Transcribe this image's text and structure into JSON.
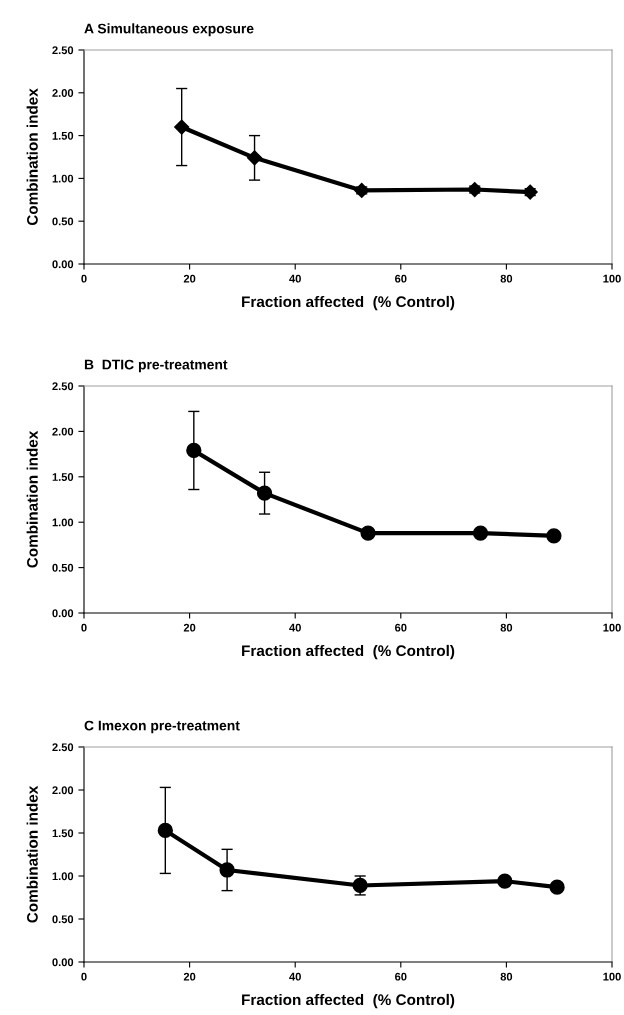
{
  "chart_data": [
    {
      "type": "line",
      "title": "A Simultaneous exposure",
      "xlabel": "Fraction affected  (% Control)",
      "ylabel": "Combination index",
      "marker": "diamond",
      "grid": false,
      "xlim": [
        0,
        100
      ],
      "xticks": [
        0,
        20,
        40,
        60,
        80,
        100
      ],
      "ylim": [
        0,
        2.5
      ],
      "yticks": [
        {
          "value": 0,
          "label": "0.00"
        },
        {
          "value": 0.5,
          "label": "0.50"
        },
        {
          "value": 1,
          "label": "1.00"
        },
        {
          "value": 1.5,
          "label": "1.50"
        },
        {
          "value": 2,
          "label": "2.00"
        },
        {
          "value": 2.5,
          "label": "2.50"
        }
      ],
      "series": [
        {
          "color": "#000000",
          "x": [
            18.5,
            32.3,
            52.6,
            74,
            84.5
          ],
          "values": [
            1.6,
            1.24,
            0.86,
            0.87,
            0.84
          ],
          "errors": [
            0.45,
            0.26,
            0.04,
            0.04,
            0.04
          ]
        }
      ]
    },
    {
      "type": "line",
      "title": "B  DTIC pre-treatment",
      "xlabel": "Fraction affected  (% Control)",
      "ylabel": "Combination index",
      "marker": "circle",
      "grid": false,
      "xlim": [
        0,
        100
      ],
      "xticks": [
        0,
        20,
        40,
        60,
        80,
        100
      ],
      "ylim": [
        0,
        2.5
      ],
      "yticks": [
        {
          "value": 0,
          "label": "0.00"
        },
        {
          "value": 0.5,
          "label": "0.50"
        },
        {
          "value": 1,
          "label": "1.00"
        },
        {
          "value": 1.5,
          "label": "1.50"
        },
        {
          "value": 2,
          "label": "2.00"
        },
        {
          "value": 2.5,
          "label": "2.50"
        }
      ],
      "series": [
        {
          "color": "#000000",
          "x": [
            20.8,
            34.2,
            53.8,
            75.1,
            89
          ],
          "values": [
            1.79,
            1.32,
            0.88,
            0.88,
            0.85
          ],
          "errors": [
            0.43,
            0.23,
            null,
            null,
            null
          ]
        }
      ]
    },
    {
      "type": "line",
      "title": "C Imexon pre-treatment",
      "xlabel": "Fraction affected  (% Control)",
      "ylabel": "Combination index",
      "marker": "circle",
      "grid": false,
      "xlim": [
        0,
        100
      ],
      "xticks": [
        0,
        20,
        40,
        60,
        80,
        100
      ],
      "ylim": [
        0,
        2.5
      ],
      "yticks": [
        {
          "value": 0,
          "label": "0.00"
        },
        {
          "value": 0.5,
          "label": "0.50"
        },
        {
          "value": 1,
          "label": "1.00"
        },
        {
          "value": 1.5,
          "label": "1.50"
        },
        {
          "value": 2,
          "label": "2.00"
        },
        {
          "value": 2.5,
          "label": "2.50"
        }
      ],
      "series": [
        {
          "color": "#000000",
          "x": [
            15.4,
            27.1,
            52.3,
            79.7,
            89.6
          ],
          "values": [
            1.53,
            1.07,
            0.89,
            0.94,
            0.87
          ],
          "errors": [
            0.5,
            0.24,
            0.11,
            null,
            null
          ]
        }
      ]
    }
  ]
}
